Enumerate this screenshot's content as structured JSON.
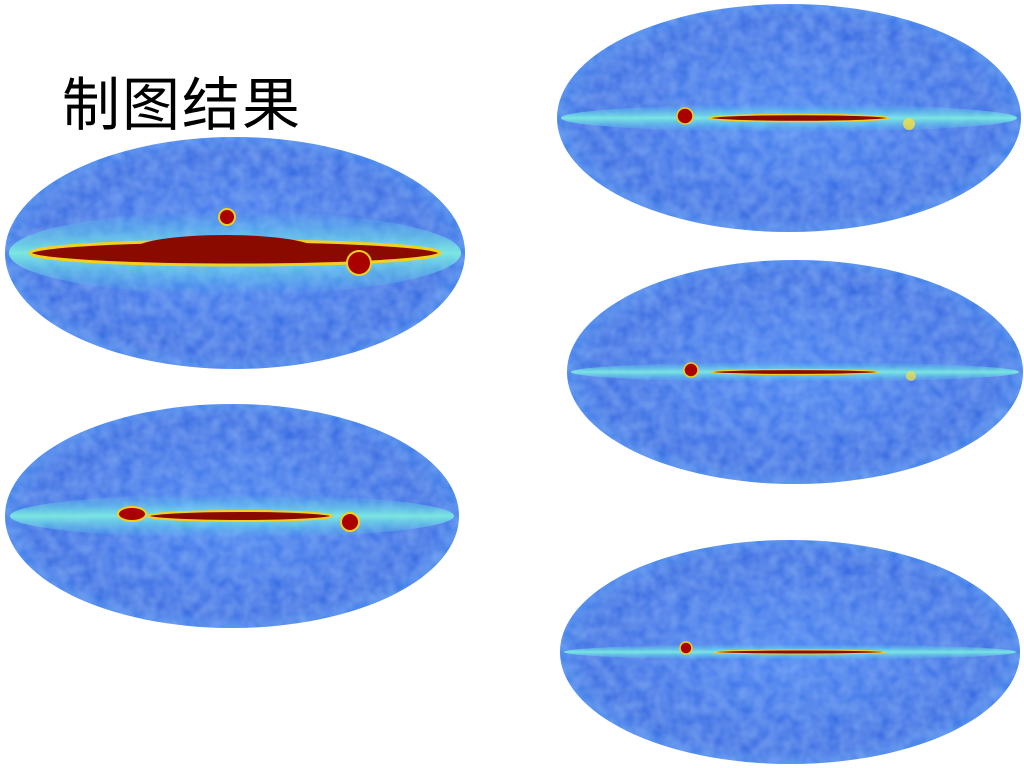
{
  "title": "制图结果"
}
